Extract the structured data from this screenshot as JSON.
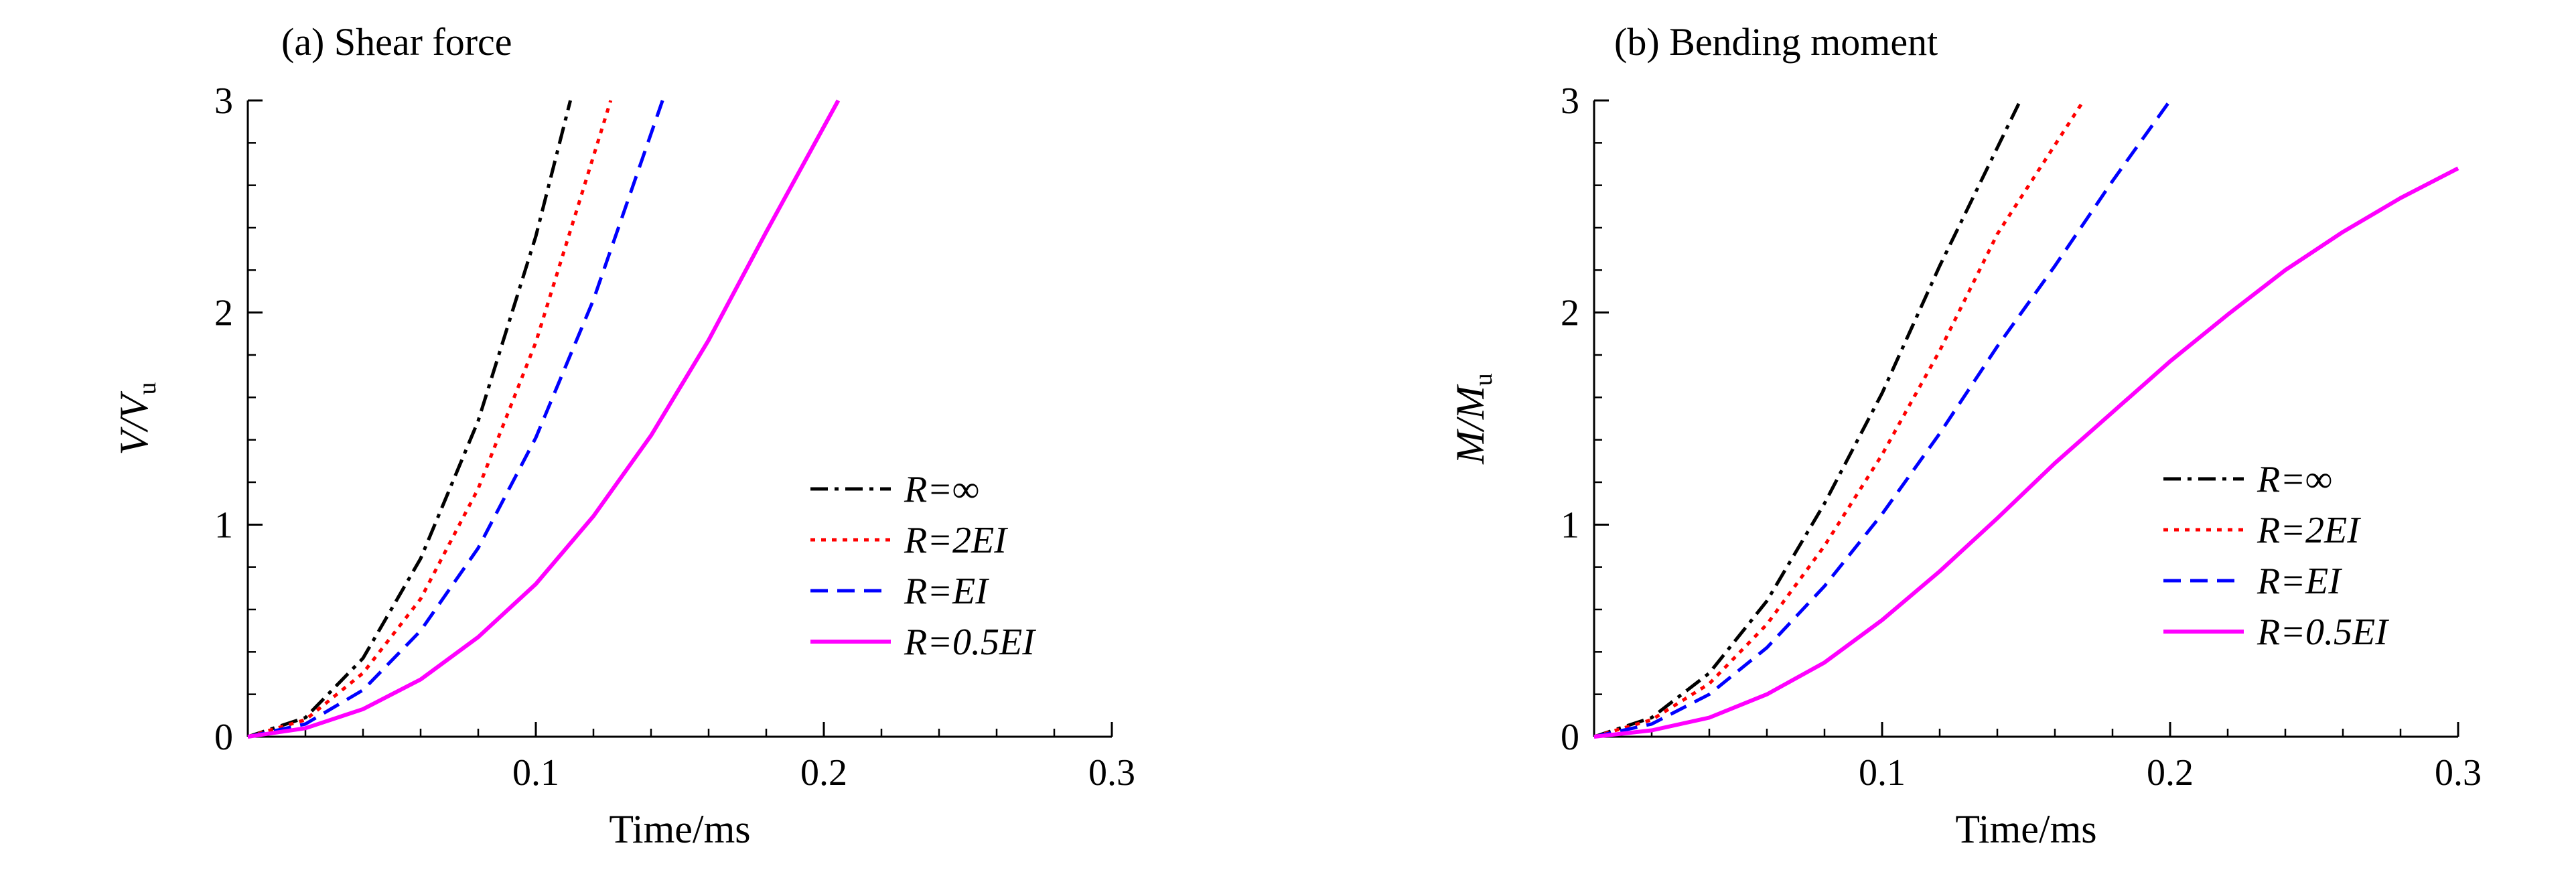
{
  "colors": {
    "R_inf": "#000000",
    "R_2EI": "#ff0000",
    "R_EI": "#0000ff",
    "R_05EI": "#ff00ff"
  },
  "chart_data": [
    {
      "type": "line",
      "title": "(a) Shear force",
      "xlabel": "Time/ms",
      "ylabel": "V/Vu",
      "ylabel_parts": {
        "main": "V/V",
        "sub": "u"
      },
      "xlim": [
        0,
        0.3
      ],
      "ylim": [
        0,
        3
      ],
      "xticks": [
        "0.1",
        "0.2",
        "0.3"
      ],
      "yticks": [
        "0",
        "1",
        "2",
        "3"
      ],
      "legend": {
        "position": "center-right"
      },
      "series": [
        {
          "name": "R=∞",
          "color": "#000000",
          "dash": "dashdot",
          "x": [
            0,
            0.02,
            0.04,
            0.06,
            0.08,
            0.1,
            0.112
          ],
          "y": [
            0,
            0.09,
            0.37,
            0.84,
            1.49,
            2.36,
            3.0
          ]
        },
        {
          "name": "R=2EI",
          "color": "#ff0000",
          "dash": "dotted",
          "x": [
            0,
            0.02,
            0.04,
            0.06,
            0.08,
            0.1,
            0.126
          ],
          "y": [
            0,
            0.08,
            0.3,
            0.65,
            1.17,
            1.86,
            3.0
          ]
        },
        {
          "name": "R=EI",
          "color": "#0000ff",
          "dash": "dashed",
          "x": [
            0,
            0.02,
            0.04,
            0.06,
            0.08,
            0.1,
            0.12,
            0.144
          ],
          "y": [
            0,
            0.06,
            0.22,
            0.5,
            0.89,
            1.41,
            2.06,
            3.0
          ]
        },
        {
          "name": "R=0.5EI",
          "color": "#ff00ff",
          "dash": "solid",
          "x": [
            0,
            0.02,
            0.04,
            0.06,
            0.08,
            0.1,
            0.12,
            0.14,
            0.16,
            0.18,
            0.205
          ],
          "y": [
            0,
            0.04,
            0.13,
            0.27,
            0.47,
            0.72,
            1.04,
            1.42,
            1.87,
            2.38,
            3.0
          ]
        }
      ]
    },
    {
      "type": "line",
      "title": "(b) Bending moment",
      "xlabel": "Time/ms",
      "ylabel": "M/Mu",
      "ylabel_parts": {
        "main": "M/M",
        "sub": "u"
      },
      "xlim": [
        0,
        0.3
      ],
      "ylim": [
        0,
        3
      ],
      "xticks": [
        "0.1",
        "0.2",
        "0.3"
      ],
      "yticks": [
        "0",
        "1",
        "2",
        "3"
      ],
      "legend": {
        "position": "center-right"
      },
      "series": [
        {
          "name": "R=∞",
          "color": "#000000",
          "dash": "dashdot",
          "x": [
            0,
            0.02,
            0.04,
            0.06,
            0.08,
            0.1,
            0.12,
            0.148
          ],
          "y": [
            0,
            0.09,
            0.3,
            0.64,
            1.1,
            1.62,
            2.22,
            3.0
          ]
        },
        {
          "name": "R=2EI",
          "color": "#ff0000",
          "dash": "dotted",
          "x": [
            0,
            0.02,
            0.04,
            0.06,
            0.08,
            0.1,
            0.12,
            0.14,
            0.17
          ],
          "y": [
            0,
            0.08,
            0.25,
            0.53,
            0.9,
            1.33,
            1.82,
            2.37,
            3.0
          ]
        },
        {
          "name": "R=EI",
          "color": "#0000ff",
          "dash": "dashed",
          "x": [
            0,
            0.02,
            0.04,
            0.06,
            0.08,
            0.1,
            0.12,
            0.14,
            0.16,
            0.18,
            0.2
          ],
          "y": [
            0,
            0.06,
            0.2,
            0.42,
            0.71,
            1.05,
            1.43,
            1.84,
            2.22,
            2.62,
            3.0
          ]
        },
        {
          "name": "R=0.5EI",
          "color": "#ff00ff",
          "dash": "solid",
          "x": [
            0,
            0.02,
            0.04,
            0.06,
            0.08,
            0.1,
            0.12,
            0.14,
            0.16,
            0.18,
            0.2,
            0.22,
            0.24,
            0.26,
            0.28,
            0.3
          ],
          "y": [
            0,
            0.03,
            0.09,
            0.2,
            0.35,
            0.55,
            0.78,
            1.03,
            1.29,
            1.53,
            1.77,
            1.99,
            2.2,
            2.38,
            2.54,
            2.68
          ]
        }
      ]
    }
  ]
}
